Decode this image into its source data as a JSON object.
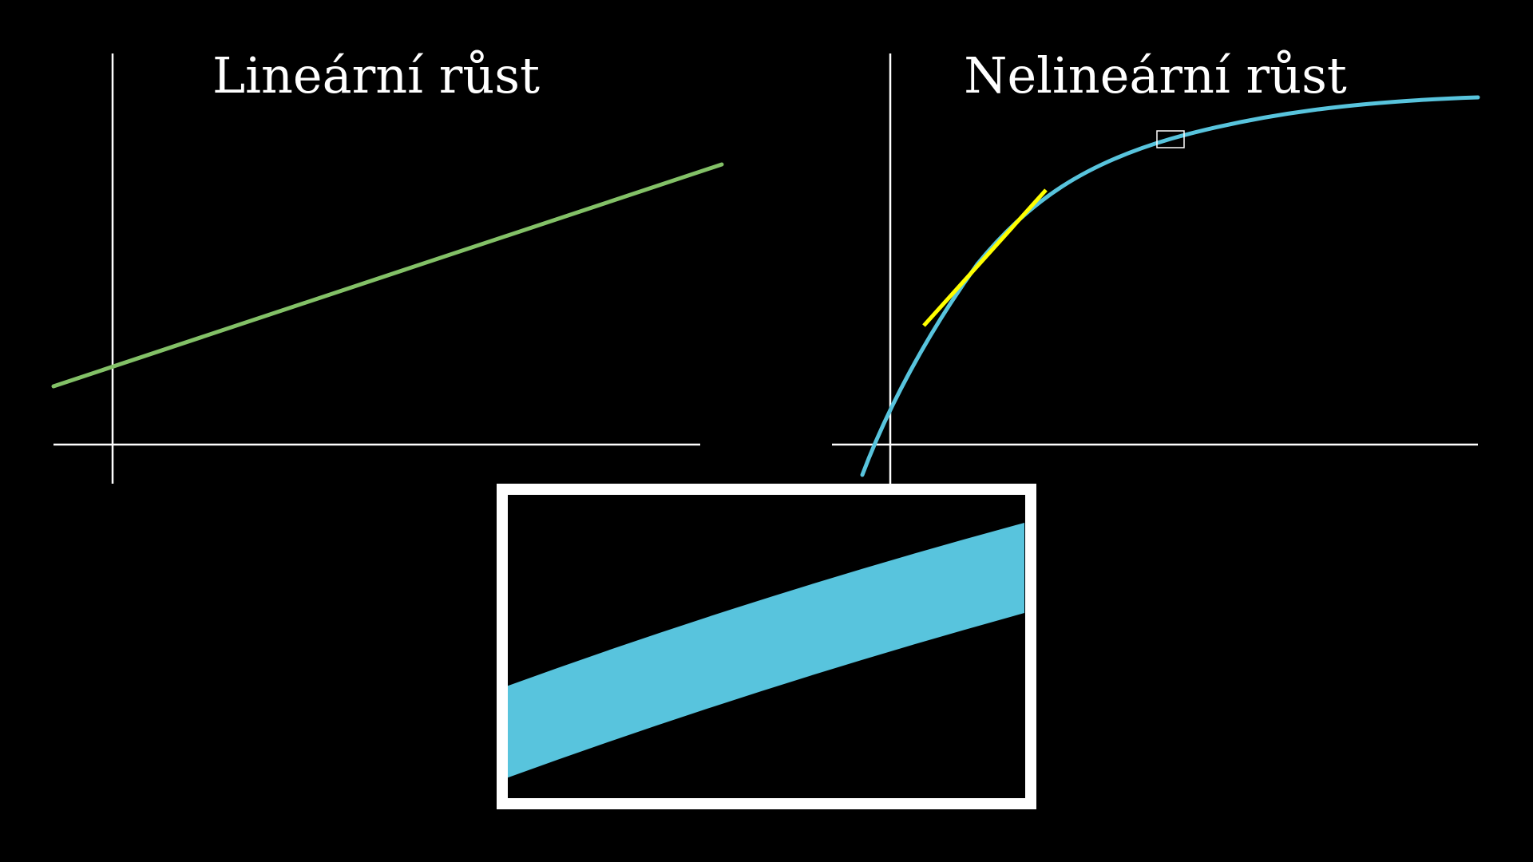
{
  "left_panel": {
    "title": "Lineární růst",
    "line_color": "#83c167"
  },
  "right_panel": {
    "title": "Nelineární růst",
    "curve_color": "#58c4dd",
    "tangent_color": "#ffff00"
  },
  "zoom_inset": {
    "border_color": "#ffffff",
    "band_color": "#58c4dd"
  },
  "axis_color": "#ffffff",
  "background": "#000000"
}
